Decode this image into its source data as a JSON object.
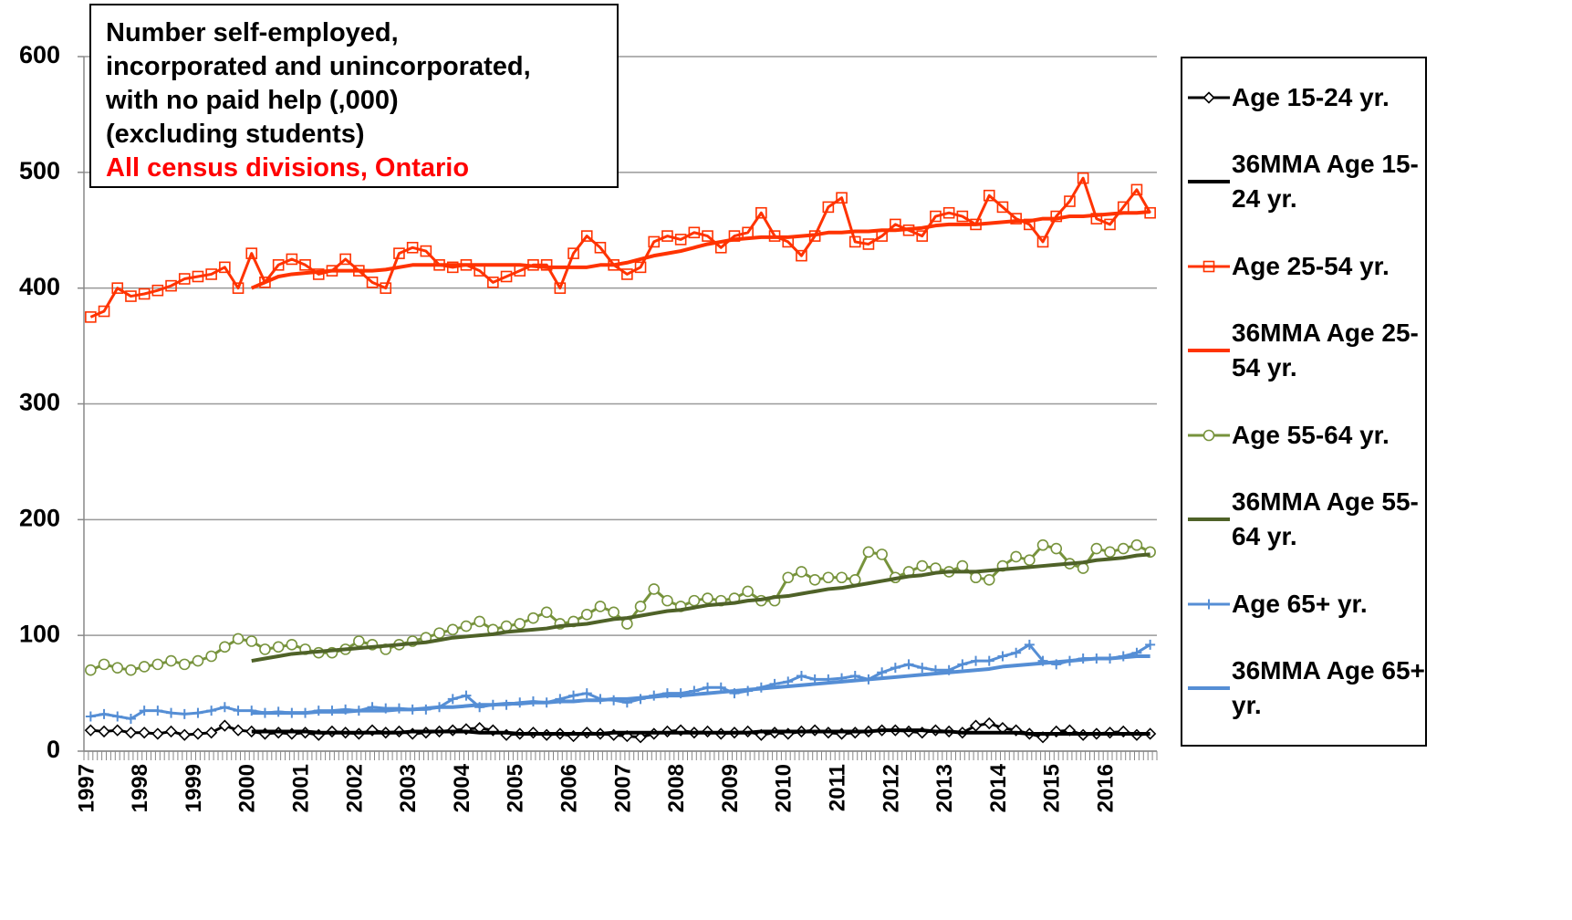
{
  "chart_data": {
    "type": "line",
    "title": [
      "Number self-employed,",
      "incorporated and unincorporated,",
      "with no paid help (,000)",
      "(excluding students)"
    ],
    "subtitle": "All census divisions, Ontario",
    "categories": [
      "1997",
      null,
      null,
      null,
      "1998",
      null,
      null,
      null,
      "1999",
      null,
      null,
      null,
      "2000",
      null,
      null,
      null,
      "2001",
      null,
      null,
      null,
      "2002",
      null,
      null,
      null,
      "2003",
      null,
      null,
      null,
      "2004",
      null,
      null,
      null,
      "2005",
      null,
      null,
      null,
      "2006",
      null,
      null,
      null,
      "2007",
      null,
      null,
      null,
      "2008",
      null,
      null,
      null,
      "2009",
      null,
      null,
      null,
      "2010",
      null,
      null,
      null,
      "2011",
      null,
      null,
      null,
      "2012",
      null,
      null,
      null,
      "2013",
      null,
      null,
      null,
      "2014",
      null,
      null,
      null,
      "2015",
      null,
      null,
      null,
      "2016",
      null,
      null,
      null
    ],
    "ylim": [
      0,
      600
    ],
    "yticks": [
      0,
      100,
      200,
      300,
      400,
      500,
      600
    ],
    "grid": true,
    "series": [
      {
        "name": "Age 15-24 yr.",
        "color": "#000000",
        "marker": "diamond",
        "values": [
          18,
          17,
          18,
          16,
          16,
          15,
          17,
          14,
          15,
          16,
          22,
          18,
          17,
          15,
          16,
          15,
          16,
          14,
          17,
          16,
          15,
          18,
          16,
          17,
          15,
          16,
          17,
          18,
          19,
          20,
          18,
          14,
          15,
          16,
          14,
          15,
          13,
          16,
          15,
          14,
          13,
          12,
          15,
          17,
          18,
          16,
          17,
          15,
          16,
          17,
          14,
          16,
          15,
          17,
          18,
          16,
          15,
          16,
          17,
          18,
          18,
          17,
          16,
          18,
          17,
          16,
          22,
          24,
          20,
          18,
          15,
          12,
          17,
          18,
          14,
          15,
          16,
          17,
          14,
          15
        ]
      },
      {
        "name": "36MMA Age 15-24 yr.",
        "color": "#000000",
        "values": [
          null,
          null,
          null,
          null,
          null,
          null,
          null,
          null,
          null,
          null,
          null,
          null,
          17,
          17,
          17,
          17,
          17,
          16,
          16,
          16,
          16,
          16,
          16,
          16,
          17,
          17,
          17,
          17,
          17,
          16,
          16,
          16,
          15,
          15,
          15,
          15,
          15,
          15,
          15,
          16,
          16,
          16,
          16,
          16,
          16,
          16,
          16,
          16,
          16,
          16,
          17,
          17,
          17,
          17,
          17,
          17,
          17,
          17,
          17,
          18,
          18,
          18,
          18,
          17,
          17,
          16,
          16,
          16,
          16,
          16,
          15,
          15,
          15,
          15,
          15,
          15,
          15,
          15,
          15,
          15
        ]
      },
      {
        "name": "Age 25-54 yr.",
        "color": "#ff3300",
        "marker": "square",
        "values": [
          375,
          380,
          400,
          393,
          395,
          398,
          402,
          408,
          410,
          412,
          418,
          400,
          430,
          405,
          420,
          425,
          420,
          412,
          415,
          425,
          415,
          405,
          400,
          430,
          435,
          432,
          420,
          418,
          420,
          415,
          405,
          410,
          415,
          420,
          420,
          400,
          430,
          445,
          435,
          420,
          412,
          418,
          440,
          445,
          442,
          448,
          445,
          435,
          445,
          448,
          465,
          445,
          440,
          428,
          445,
          470,
          478,
          440,
          438,
          445,
          455,
          450,
          445,
          462,
          465,
          462,
          455,
          480,
          470,
          460,
          455,
          440,
          462,
          475,
          495,
          460,
          455,
          470,
          485,
          465
        ]
      },
      {
        "name": "36MMA Age 25-54 yr.",
        "color": "#ff3300",
        "values": [
          null,
          null,
          null,
          null,
          null,
          null,
          null,
          null,
          null,
          null,
          null,
          null,
          400,
          405,
          410,
          412,
          413,
          414,
          415,
          415,
          415,
          415,
          416,
          418,
          420,
          420,
          420,
          420,
          420,
          420,
          420,
          420,
          420,
          419,
          418,
          418,
          418,
          418,
          420,
          420,
          422,
          425,
          428,
          430,
          432,
          435,
          438,
          440,
          442,
          443,
          444,
          444,
          444,
          445,
          446,
          448,
          448,
          449,
          449,
          450,
          450,
          451,
          452,
          454,
          455,
          455,
          455,
          456,
          457,
          458,
          458,
          460,
          460,
          462,
          462,
          463,
          464,
          465,
          465,
          466
        ]
      },
      {
        "name": "Age 55-64 yr.",
        "color": "#77933c",
        "marker": "circle",
        "values": [
          70,
          75,
          72,
          70,
          73,
          75,
          78,
          75,
          78,
          82,
          90,
          97,
          95,
          88,
          90,
          92,
          88,
          85,
          85,
          88,
          95,
          92,
          88,
          92,
          95,
          98,
          102,
          105,
          108,
          112,
          105,
          108,
          110,
          115,
          120,
          110,
          112,
          118,
          125,
          120,
          110,
          125,
          140,
          130,
          125,
          130,
          132,
          130,
          132,
          138,
          130,
          130,
          150,
          155,
          148,
          150,
          150,
          148,
          172,
          170,
          150,
          155,
          160,
          158,
          155,
          160,
          150,
          148,
          160,
          168,
          165,
          178,
          175,
          162,
          158,
          175,
          172,
          175,
          178,
          172
        ]
      },
      {
        "name": "36MMA Age 55-64 yr.",
        "color": "#4f6228",
        "values": [
          null,
          null,
          null,
          null,
          null,
          null,
          null,
          null,
          null,
          null,
          null,
          null,
          78,
          80,
          82,
          84,
          85,
          86,
          87,
          88,
          89,
          90,
          91,
          92,
          93,
          94,
          96,
          98,
          99,
          100,
          101,
          103,
          104,
          105,
          106,
          108,
          109,
          110,
          112,
          114,
          115,
          117,
          119,
          121,
          122,
          124,
          126,
          127,
          128,
          130,
          131,
          133,
          134,
          136,
          138,
          140,
          141,
          143,
          145,
          147,
          149,
          151,
          152,
          154,
          155,
          155,
          155,
          156,
          157,
          158,
          159,
          160,
          161,
          162,
          163,
          165,
          166,
          167,
          169,
          170
        ]
      },
      {
        "name": "Age 65+ yr.",
        "color": "#558ed5",
        "marker": "plus",
        "values": [
          30,
          32,
          30,
          28,
          35,
          35,
          33,
          32,
          33,
          35,
          38,
          35,
          35,
          33,
          34,
          33,
          33,
          35,
          35,
          36,
          35,
          38,
          37,
          37,
          36,
          36,
          38,
          45,
          48,
          38,
          40,
          40,
          42,
          43,
          42,
          45,
          48,
          50,
          45,
          44,
          42,
          45,
          48,
          50,
          50,
          52,
          55,
          55,
          50,
          52,
          55,
          58,
          60,
          65,
          62,
          62,
          63,
          65,
          62,
          68,
          72,
          75,
          72,
          70,
          70,
          75,
          78,
          78,
          82,
          85,
          92,
          78,
          75,
          78,
          80,
          80,
          80,
          82,
          85,
          92
        ]
      },
      {
        "name": "36MMA Age 65+ yr.",
        "color": "#558ed5",
        "values": [
          null,
          null,
          null,
          null,
          null,
          null,
          null,
          null,
          null,
          null,
          null,
          null,
          33,
          33,
          33,
          33,
          33,
          34,
          34,
          34,
          35,
          35,
          35,
          36,
          36,
          37,
          38,
          38,
          39,
          40,
          40,
          41,
          41,
          42,
          42,
          43,
          43,
          44,
          44,
          45,
          45,
          46,
          47,
          48,
          48,
          49,
          50,
          51,
          52,
          53,
          54,
          55,
          56,
          57,
          58,
          59,
          60,
          61,
          62,
          63,
          64,
          65,
          66,
          67,
          68,
          69,
          70,
          71,
          73,
          74,
          75,
          76,
          77,
          78,
          79,
          80,
          80,
          81,
          82,
          82
        ]
      }
    ]
  }
}
